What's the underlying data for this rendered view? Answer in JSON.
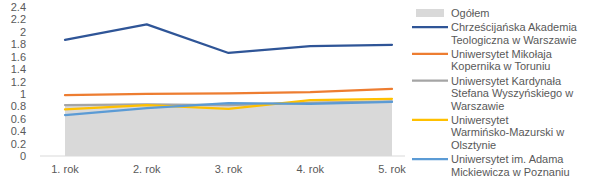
{
  "chart_data": {
    "type": "line",
    "categories": [
      "1. rok",
      "2. rok",
      "3. rok",
      "4. rok",
      "5. rok"
    ],
    "series": [
      {
        "name": "Ogółem",
        "type": "area",
        "color": "#d9d9d9",
        "values": [
          0.82,
          0.84,
          0.83,
          0.86,
          0.88
        ]
      },
      {
        "name": "Chrześcijańska Akademia Teologiczna w Warszawie",
        "color": "#2f5597",
        "values": [
          1.87,
          2.12,
          1.66,
          1.77,
          1.79
        ]
      },
      {
        "name": "Uniwersytet Mikołaja Kopernika w Toruniu",
        "color": "#ed7d31",
        "values": [
          0.98,
          1.0,
          1.01,
          1.03,
          1.08
        ]
      },
      {
        "name": "Uniwersytet Kardynała Stefana Wyszyńskiego w Warszawie",
        "color": "#a5a5a5",
        "values": [
          0.82,
          0.83,
          0.82,
          0.86,
          0.88
        ]
      },
      {
        "name": "Uniwersytet Warmińsko-Mazurski w Olsztynie",
        "color": "#ffc000",
        "values": [
          0.75,
          0.82,
          0.76,
          0.9,
          0.92
        ]
      },
      {
        "name": "Uniwersytet im. Adama Mickiewicza w Poznaniu",
        "color": "#5b9bd5",
        "values": [
          0.66,
          0.77,
          0.85,
          0.84,
          0.87
        ]
      }
    ],
    "ylim": [
      0,
      2.4
    ],
    "yticks": [
      0,
      0.2,
      0.4,
      0.6,
      0.8,
      1,
      1.2,
      1.4,
      1.6,
      1.8,
      2,
      2.2,
      2.4
    ],
    "grid": false,
    "legend": "right"
  }
}
